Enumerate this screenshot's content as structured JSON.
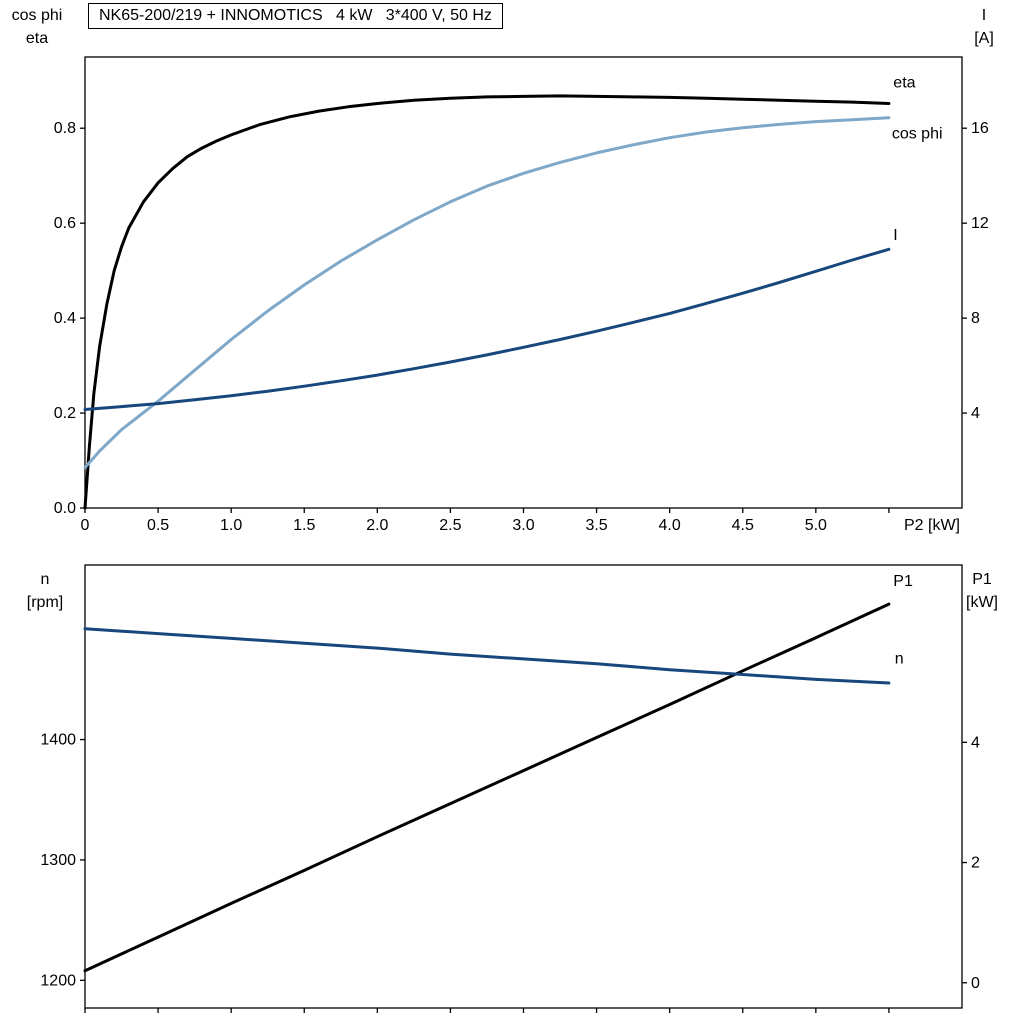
{
  "colors": {
    "eta_black": "#000000",
    "cosphi_light_blue": "#7ea7c8",
    "current_dark_blue": "#17477c"
  },
  "chart_data": [
    {
      "type": "line",
      "title": "NK65-200/219 + INNOMOTICS   4 kW   3*400 V, 50 Hz",
      "xlabel": "P2 [kW]",
      "ylabel_left": [
        "cos phi",
        "eta"
      ],
      "ylabel_right": [
        "I",
        "[A]"
      ],
      "xlim": [
        0,
        6
      ],
      "ylim_left": [
        0,
        0.95
      ],
      "ylim_right": [
        0,
        19
      ],
      "grid": false,
      "legend_position": "curve-end-labels",
      "x_ticks": {
        "values": [
          0,
          0.5,
          1.0,
          1.5,
          2.0,
          2.5,
          3.0,
          3.5,
          4.0,
          4.5,
          5.0,
          5.5
        ],
        "labels": [
          "0",
          "0.5",
          "1.0",
          "1.5",
          "2.0",
          "2.5",
          "3.0",
          "3.5",
          "4.0",
          "4.5",
          "5.0",
          ""
        ]
      },
      "y_ticks_left": {
        "values": [
          0,
          0.2,
          0.4,
          0.6,
          0.8
        ],
        "labels": [
          "0.0",
          "0.2",
          "0.4",
          "0.6",
          "0.8"
        ]
      },
      "y_ticks_right": {
        "values": [
          4,
          8,
          12,
          16
        ],
        "labels": [
          "4",
          "8",
          "12",
          "16"
        ]
      },
      "series": [
        {
          "name": "eta",
          "axis": "left",
          "color": "#000000",
          "label_at": [
            5.53,
            0.886
          ],
          "x": [
            0,
            0.03,
            0.06,
            0.1,
            0.15,
            0.2,
            0.25,
            0.3,
            0.4,
            0.5,
            0.6,
            0.7,
            0.8,
            0.9,
            1.0,
            1.2,
            1.4,
            1.6,
            1.8,
            2.0,
            2.25,
            2.5,
            2.75,
            3.0,
            3.25,
            3.5,
            3.75,
            4.0,
            4.25,
            4.5,
            4.75,
            5.0,
            5.25,
            5.5
          ],
          "y": [
            0,
            0.13,
            0.24,
            0.34,
            0.43,
            0.5,
            0.55,
            0.59,
            0.645,
            0.685,
            0.715,
            0.74,
            0.758,
            0.773,
            0.786,
            0.808,
            0.824,
            0.836,
            0.845,
            0.852,
            0.859,
            0.863,
            0.866,
            0.867,
            0.868,
            0.867,
            0.866,
            0.865,
            0.863,
            0.861,
            0.859,
            0.857,
            0.855,
            0.852
          ]
        },
        {
          "name": "cos phi",
          "axis": "left",
          "color": "#7ea7c8",
          "label_at": [
            5.52,
            0.778
          ],
          "x": [
            0,
            0.1,
            0.25,
            0.5,
            0.75,
            1.0,
            1.25,
            1.5,
            1.75,
            2.0,
            2.25,
            2.5,
            2.75,
            3.0,
            3.25,
            3.5,
            3.75,
            4.0,
            4.25,
            4.5,
            4.75,
            5.0,
            5.25,
            5.5
          ],
          "y": [
            0.085,
            0.12,
            0.165,
            0.225,
            0.29,
            0.355,
            0.415,
            0.47,
            0.52,
            0.565,
            0.607,
            0.645,
            0.678,
            0.705,
            0.728,
            0.748,
            0.765,
            0.78,
            0.792,
            0.801,
            0.808,
            0.814,
            0.818,
            0.822
          ]
        },
        {
          "name": "I",
          "axis": "right",
          "color": "#17477c",
          "label_at": [
            5.53,
            11.3
          ],
          "x": [
            0,
            0.25,
            0.5,
            0.75,
            1.0,
            1.25,
            1.5,
            1.75,
            2.0,
            2.25,
            2.5,
            2.75,
            3.0,
            3.25,
            3.5,
            3.75,
            4.0,
            4.25,
            4.5,
            4.75,
            5.0,
            5.25,
            5.5
          ],
          "y": [
            4.15,
            4.27,
            4.4,
            4.56,
            4.73,
            4.92,
            5.13,
            5.36,
            5.6,
            5.87,
            6.15,
            6.45,
            6.77,
            7.1,
            7.45,
            7.82,
            8.2,
            8.62,
            9.05,
            9.5,
            9.97,
            10.45,
            10.9
          ]
        }
      ]
    },
    {
      "type": "line",
      "title": "",
      "xlabel": "",
      "ylabel_left": [
        "n",
        "[rpm]"
      ],
      "ylabel_right": [
        "P1",
        "[kW]"
      ],
      "xlim": [
        0,
        6
      ],
      "ylim_left": [
        1177,
        1545
      ],
      "ylim_right": [
        -0.42,
        6.95
      ],
      "grid": false,
      "legend_position": "curve-end-labels",
      "x_ticks": {
        "values": [
          0,
          0.5,
          1.0,
          1.5,
          2.0,
          2.5,
          3.0,
          3.5,
          4.0,
          4.5,
          5.0,
          5.5
        ],
        "labels": [
          "",
          "",
          "",
          "",
          "",
          "",
          "",
          "",
          "",
          "",
          "",
          ""
        ]
      },
      "y_ticks_left": {
        "values": [
          1200,
          1300,
          1400
        ],
        "labels": [
          "1200",
          "1300",
          "1400"
        ]
      },
      "y_ticks_right": {
        "values": [
          0,
          2,
          4
        ],
        "labels": [
          "0",
          "2",
          "4"
        ]
      },
      "series": [
        {
          "name": "P1",
          "axis": "right",
          "color": "#000000",
          "label_at": [
            5.53,
            6.6
          ],
          "x": [
            0,
            0.5,
            1.0,
            1.5,
            2.0,
            2.5,
            3.0,
            3.5,
            4.0,
            4.5,
            5.0,
            5.5
          ],
          "y": [
            0.2,
            0.76,
            1.32,
            1.87,
            2.43,
            2.98,
            3.53,
            4.08,
            4.63,
            5.19,
            5.74,
            6.3
          ]
        },
        {
          "name": "n",
          "axis": "left",
          "color": "#17477c",
          "label_at": [
            5.54,
            1463
          ],
          "x": [
            0,
            0.5,
            1.0,
            1.5,
            2.0,
            2.5,
            3.0,
            3.5,
            4.0,
            4.5,
            5.0,
            5.5
          ],
          "y": [
            1492,
            1488,
            1484,
            1480,
            1476,
            1471,
            1467,
            1463,
            1458,
            1454,
            1450,
            1447
          ]
        }
      ]
    }
  ]
}
